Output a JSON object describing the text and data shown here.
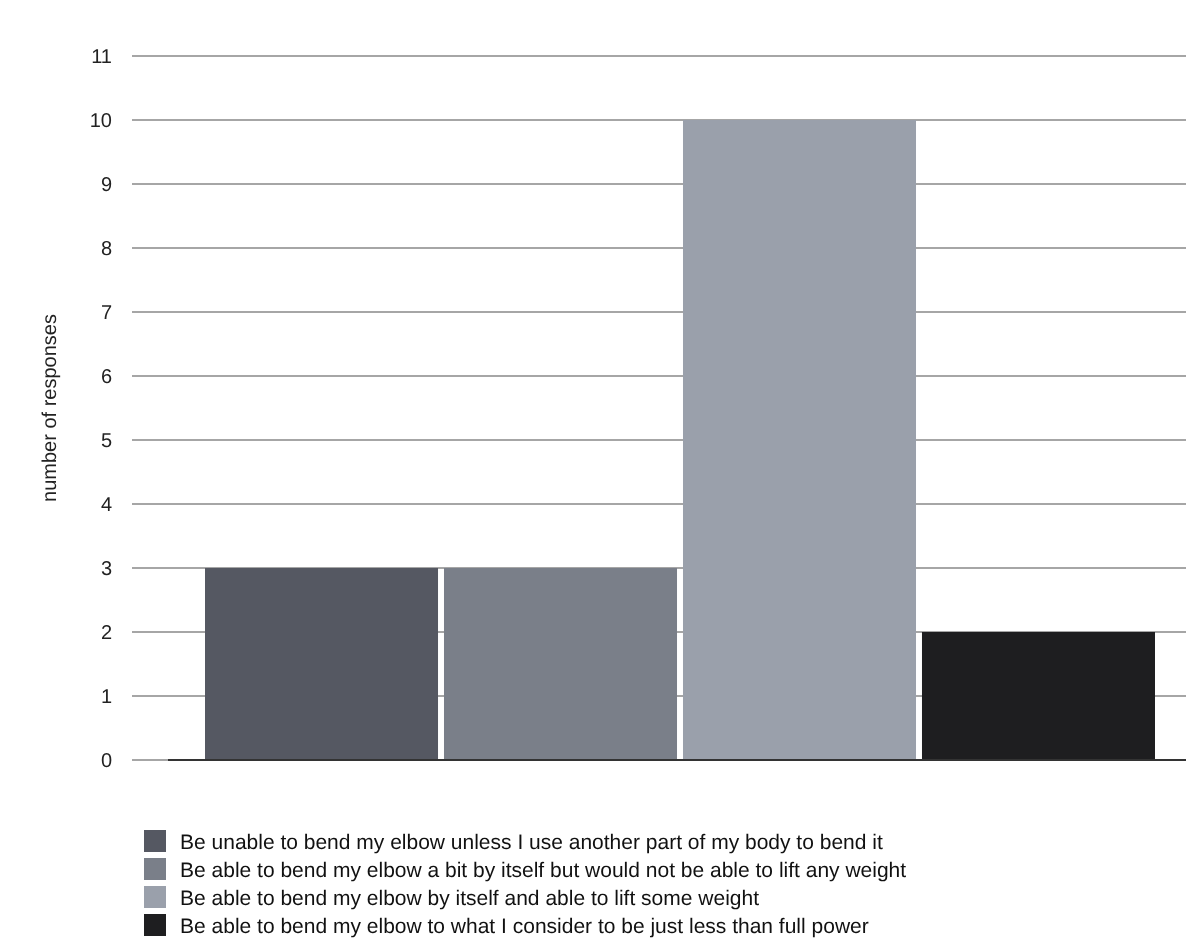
{
  "chart_data": {
    "type": "bar",
    "ylabel": "number of responses",
    "categories": [
      null
    ],
    "series": [
      {
        "name": "Be unable to bend my elbow unless I use another part of my body to bend it",
        "color": "#555862",
        "values": [
          3
        ]
      },
      {
        "name": "Be able to bend my elbow a bit by itself but would not be able to lift any weight",
        "color": "#7a7f89",
        "values": [
          3
        ]
      },
      {
        "name": "Be able to bend my elbow by itself and able to lift some weight",
        "color": "#9aa0ab",
        "values": [
          10
        ]
      },
      {
        "name": "Be able to bend my elbow to what I consider to be just less than full power",
        "color": "#1e1e20",
        "values": [
          2
        ]
      }
    ],
    "ylim": [
      0,
      11
    ],
    "yticks": [
      0,
      1,
      2,
      3,
      4,
      5,
      6,
      7,
      8,
      9,
      10,
      11
    ],
    "grid": "y",
    "legend": "bottom"
  }
}
